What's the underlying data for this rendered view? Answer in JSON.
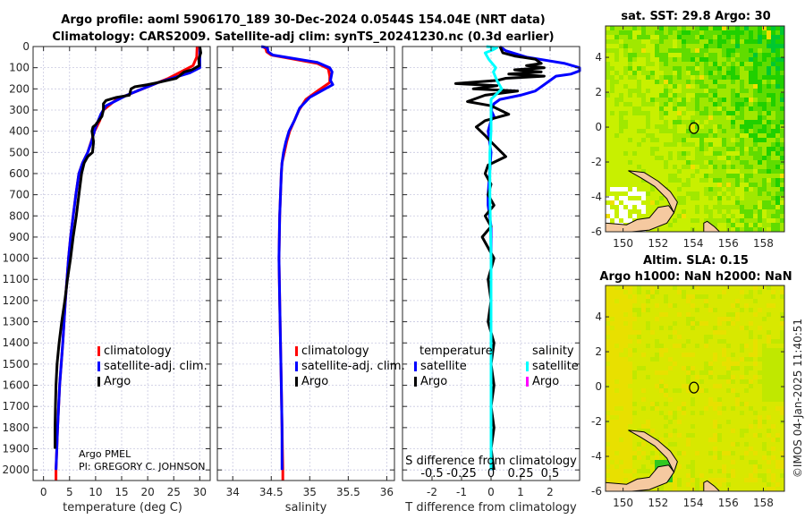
{
  "figure": {
    "title_line1": "Argo profile: aoml 5906170_189 30-Dec-2024 0.0544S 154.04E (NRT data)",
    "title_line2": "Climatology: CARS2009. Satellite-adj clim: synTS_20241230.nc (0.3d earlier)",
    "credit_line1": "Argo PMEL",
    "credit_line2": "PI: GREGORY C. JOHNSON",
    "timestamp": "©IMOS 04-Jan-2025 11:40:51",
    "colors": {
      "climatology": "#ff0000",
      "satellite_adj": "#0000ff",
      "argo": "#000000",
      "s_satellite": "#00ffff",
      "s_argo": "#ff00ff",
      "land": "#f5c9a0"
    }
  },
  "chart_data": [
    {
      "id": "temperature",
      "type": "line",
      "xlabel": "temperature (deg C)",
      "ylabel": "",
      "xlim": [
        -2,
        32
      ],
      "ylim": [
        2050,
        0
      ],
      "xticks": [
        0,
        5,
        10,
        15,
        20,
        25,
        30
      ],
      "yticks": [
        0,
        100,
        200,
        300,
        400,
        500,
        600,
        700,
        800,
        900,
        1000,
        1100,
        1200,
        1300,
        1400,
        1500,
        1600,
        1700,
        1800,
        1900,
        2000
      ],
      "grid": true,
      "legend": {
        "placement": "lower-right",
        "entries": [
          "climatology",
          "satellite-adj. clim.",
          "Argo"
        ]
      },
      "series": [
        {
          "name": "climatology",
          "color": "#ff0000",
          "points": [
            [
              29.5,
              0
            ],
            [
              29.4,
              50
            ],
            [
              28.7,
              90
            ],
            [
              24,
              150
            ],
            [
              19,
              200
            ],
            [
              14,
              250
            ],
            [
              11.5,
              300
            ],
            [
              10.8,
              350
            ],
            [
              9.8,
              400
            ],
            [
              8.5,
              500
            ],
            [
              7.5,
              550
            ],
            [
              6.8,
              600
            ],
            [
              6.2,
              700
            ],
            [
              5.7,
              800
            ],
            [
              5.2,
              900
            ],
            [
              4.8,
              1000
            ],
            [
              4.2,
              1200
            ],
            [
              3.7,
              1400
            ],
            [
              3.1,
              1600
            ],
            [
              2.7,
              1800
            ],
            [
              2.4,
              2000
            ],
            [
              2.4,
              2050
            ]
          ]
        },
        {
          "name": "satellite-adj. clim.",
          "color": "#0000ff",
          "points": [
            [
              30,
              0
            ],
            [
              30,
              50
            ],
            [
              30,
              100
            ],
            [
              28,
              125
            ],
            [
              22,
              170
            ],
            [
              16,
              230
            ],
            [
              12,
              280
            ],
            [
              11,
              320
            ],
            [
              10,
              380
            ],
            [
              9.2,
              450
            ],
            [
              8.5,
              500
            ],
            [
              7.5,
              550
            ],
            [
              6.8,
              600
            ],
            [
              6.2,
              700
            ],
            [
              5.7,
              800
            ],
            [
              5.2,
              900
            ],
            [
              4.8,
              1000
            ],
            [
              4.2,
              1200
            ],
            [
              3.7,
              1400
            ],
            [
              3.1,
              1600
            ],
            [
              2.7,
              1800
            ],
            [
              2.4,
              2000
            ]
          ]
        },
        {
          "name": "Argo",
          "color": "#000000",
          "points": [
            [
              30,
              0
            ],
            [
              30.2,
              30
            ],
            [
              29.8,
              60
            ],
            [
              29.9,
              90
            ],
            [
              28.5,
              110
            ],
            [
              27,
              120
            ],
            [
              25.5,
              150
            ],
            [
              22,
              170
            ],
            [
              20,
              180
            ],
            [
              17.5,
              190
            ],
            [
              16.8,
              200
            ],
            [
              16.5,
              230
            ],
            [
              14,
              240
            ],
            [
              12,
              255
            ],
            [
              11.5,
              270
            ],
            [
              11.5,
              300
            ],
            [
              11.2,
              330
            ],
            [
              10.6,
              350
            ],
            [
              10,
              370
            ],
            [
              9.5,
              380
            ],
            [
              9.3,
              400
            ],
            [
              9.6,
              450
            ],
            [
              9.4,
              500
            ],
            [
              8.5,
              520
            ],
            [
              7.8,
              550
            ],
            [
              7.3,
              600
            ],
            [
              6.8,
              700
            ],
            [
              6.3,
              800
            ],
            [
              5.7,
              900
            ],
            [
              5.2,
              1000
            ],
            [
              4.6,
              1100
            ],
            [
              4.1,
              1200
            ],
            [
              3.5,
              1300
            ],
            [
              3.0,
              1400
            ],
            [
              2.6,
              1500
            ],
            [
              2.4,
              1600
            ],
            [
              2.3,
              1700
            ],
            [
              2.2,
              1800
            ],
            [
              2.2,
              1900
            ]
          ]
        }
      ]
    },
    {
      "id": "salinity",
      "type": "line",
      "xlabel": "salinity",
      "xlim": [
        33.8,
        36.1
      ],
      "ylim": [
        2050,
        0
      ],
      "xticks": [
        34,
        34.5,
        35,
        35.5,
        36
      ],
      "xtick_labels": [
        "34",
        "34.5",
        "35",
        "35.5",
        "36"
      ],
      "grid": true,
      "legend": {
        "placement": "lower-right",
        "entries": [
          "climatology",
          "satellite-adj. clim.",
          "Argo"
        ]
      },
      "series": [
        {
          "name": "climatology",
          "color": "#ff0000",
          "points": [
            [
              34.39,
              0
            ],
            [
              34.43,
              10
            ],
            [
              34.44,
              25
            ],
            [
              34.5,
              40
            ],
            [
              35.1,
              80
            ],
            [
              35.24,
              105
            ],
            [
              35.26,
              140
            ],
            [
              35.26,
              170
            ],
            [
              35.22,
              180
            ],
            [
              35.1,
              210
            ],
            [
              34.95,
              250
            ],
            [
              34.86,
              300
            ],
            [
              34.8,
              350
            ],
            [
              34.74,
              400
            ],
            [
              34.7,
              450
            ],
            [
              34.67,
              500
            ],
            [
              34.64,
              550
            ],
            [
              34.63,
              600
            ],
            [
              34.62,
              700
            ],
            [
              34.61,
              800
            ],
            [
              34.6,
              1000
            ],
            [
              34.61,
              1200
            ],
            [
              34.62,
              1400
            ],
            [
              34.63,
              1600
            ],
            [
              34.64,
              1800
            ],
            [
              34.65,
              2000
            ],
            [
              34.65,
              2050
            ]
          ]
        },
        {
          "name": "satellite-adj. clim.",
          "color": "#0000ff",
          "points": [
            [
              34.37,
              0
            ],
            [
              34.45,
              5
            ],
            [
              34.46,
              25
            ],
            [
              34.52,
              40
            ],
            [
              35.1,
              75
            ],
            [
              35.26,
              100
            ],
            [
              35.29,
              120
            ],
            [
              35.27,
              160
            ],
            [
              35.3,
              180
            ],
            [
              35.2,
              200
            ],
            [
              35.0,
              240
            ],
            [
              34.87,
              290
            ],
            [
              34.8,
              350
            ],
            [
              34.73,
              400
            ],
            [
              34.69,
              450
            ],
            [
              34.66,
              500
            ],
            [
              34.64,
              550
            ],
            [
              34.63,
              600
            ],
            [
              34.62,
              700
            ],
            [
              34.61,
              800
            ],
            [
              34.6,
              1000
            ],
            [
              34.61,
              1200
            ],
            [
              34.62,
              1400
            ],
            [
              34.63,
              1600
            ],
            [
              34.64,
              1800
            ],
            [
              34.64,
              2000
            ]
          ]
        }
      ]
    },
    {
      "id": "difference",
      "type": "line",
      "xlabel": "T difference from climatology",
      "xlabel2": "S difference from climatology",
      "xlim": [
        -3,
        3
      ],
      "ylim": [
        2050,
        0
      ],
      "xticks": [
        -2,
        -1,
        0,
        1,
        2
      ],
      "xtick_labels": [
        "-2",
        "-1",
        "0",
        "1",
        "2"
      ],
      "s_xticks_labels": [
        "-0.5",
        "-0.25",
        "0",
        "0.25",
        "0.5"
      ],
      "s_xlim": [
        -0.75,
        0.75
      ],
      "grid": true,
      "legend": {
        "placement": "lower",
        "temperature_header": "temperature",
        "salinity_header": "salinity",
        "entries": [
          "satellite",
          "Argo",
          "satellite",
          "Argo"
        ]
      },
      "series": [
        {
          "name": "T satellite",
          "color": "#0000ff",
          "axis": "T",
          "points": [
            [
              0.3,
              0
            ],
            [
              0.5,
              20
            ],
            [
              1.2,
              50
            ],
            [
              2.5,
              80
            ],
            [
              3.0,
              100
            ],
            [
              3.0,
              115
            ],
            [
              2.7,
              130
            ],
            [
              2.2,
              140
            ],
            [
              2.0,
              160
            ],
            [
              1.8,
              180
            ],
            [
              1.5,
              210
            ],
            [
              1.0,
              230
            ],
            [
              0.3,
              250
            ],
            [
              0.1,
              270
            ],
            [
              0.0,
              300
            ],
            [
              0.1,
              330
            ],
            [
              0.0,
              350
            ],
            [
              -0.1,
              400
            ],
            [
              0.0,
              500
            ],
            [
              -0.05,
              600
            ],
            [
              -0.1,
              700
            ],
            [
              -0.1,
              750
            ],
            [
              0.0,
              850
            ],
            [
              0.0,
              1000
            ],
            [
              0.0,
              1500
            ],
            [
              0.0,
              2000
            ]
          ]
        },
        {
          "name": "T Argo",
          "color": "#000000",
          "axis": "T",
          "points": [
            [
              0.3,
              0
            ],
            [
              0.4,
              30
            ],
            [
              0.8,
              45
            ],
            [
              1.5,
              60
            ],
            [
              1.7,
              80
            ],
            [
              1.2,
              90
            ],
            [
              1.8,
              100
            ],
            [
              0.8,
              110
            ],
            [
              1.7,
              120
            ],
            [
              0.6,
              130
            ],
            [
              1.8,
              140
            ],
            [
              0.5,
              150
            ],
            [
              0.2,
              160
            ],
            [
              -1.2,
              175
            ],
            [
              0.2,
              185
            ],
            [
              -0.6,
              200
            ],
            [
              0.9,
              210
            ],
            [
              -0.2,
              230
            ],
            [
              -0.8,
              260
            ],
            [
              0.0,
              280
            ],
            [
              0.6,
              320
            ],
            [
              -0.2,
              350
            ],
            [
              -0.5,
              380
            ],
            [
              -0.2,
              420
            ],
            [
              0.0,
              450
            ],
            [
              0.5,
              520
            ],
            [
              -0.1,
              560
            ],
            [
              -0.2,
              600
            ],
            [
              0.0,
              650
            ],
            [
              -0.1,
              700
            ],
            [
              0.1,
              750
            ],
            [
              -0.2,
              800
            ],
            [
              0.0,
              850
            ],
            [
              -0.3,
              900
            ],
            [
              0.1,
              1000
            ],
            [
              -0.1,
              1100
            ],
            [
              0.0,
              1200
            ],
            [
              -0.1,
              1300
            ],
            [
              0.1,
              1400
            ],
            [
              0.0,
              1500
            ],
            [
              0.1,
              1600
            ],
            [
              0.0,
              1700
            ],
            [
              0.1,
              1800
            ],
            [
              0.0,
              1900
            ],
            [
              0.1,
              2000
            ]
          ]
        },
        {
          "name": "S satellite",
          "color": "#00ffff",
          "axis": "S",
          "points": [
            [
              -0.04,
              0
            ],
            [
              0.05,
              5
            ],
            [
              0.02,
              15
            ],
            [
              -0.05,
              30
            ],
            [
              -0.02,
              60
            ],
            [
              0.04,
              100
            ],
            [
              0.02,
              120
            ],
            [
              0.05,
              160
            ],
            [
              0.09,
              200
            ],
            [
              0.0,
              250
            ],
            [
              0.0,
              300
            ],
            [
              0.0,
              400
            ],
            [
              -0.01,
              500
            ],
            [
              -0.01,
              700
            ],
            [
              0.0,
              1000
            ],
            [
              0.0,
              1500
            ],
            [
              0.0,
              2000
            ]
          ]
        }
      ]
    },
    {
      "id": "sst-map",
      "type": "heatmap",
      "title": "sat. SST: 29.8 Argo: 30",
      "xlim": [
        149,
        159.2
      ],
      "ylim": [
        -6,
        5.8
      ],
      "xticks": [
        150,
        152,
        154,
        156,
        158
      ],
      "yticks": [
        4,
        2,
        0,
        -2,
        -4,
        -6
      ],
      "argo_position": {
        "lon": 154.04,
        "lat": -0.0544
      }
    },
    {
      "id": "sla-map",
      "type": "heatmap",
      "title_line1": "Altim. SLA: 0.15",
      "title_line2": "Argo h1000: NaN h2000: NaN",
      "xlim": [
        149,
        159.2
      ],
      "ylim": [
        -6,
        5.8
      ],
      "xticks": [
        150,
        152,
        154,
        156,
        158
      ],
      "yticks": [
        4,
        2,
        0,
        -2,
        -4,
        -6
      ],
      "argo_position": {
        "lon": 154.04,
        "lat": -0.0544
      }
    }
  ]
}
